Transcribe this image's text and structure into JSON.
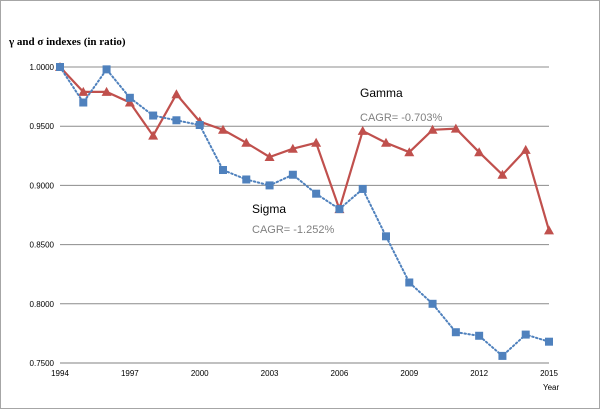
{
  "chart_data": {
    "type": "line",
    "ylabel": "γ and σ indexes (in ratio)",
    "xlabel": "Year",
    "x": [
      1994,
      1995,
      1996,
      1997,
      1998,
      1999,
      2000,
      2001,
      2002,
      2003,
      2004,
      2005,
      2006,
      2007,
      2008,
      2009,
      2010,
      2011,
      2012,
      2013,
      2014,
      2015
    ],
    "xticks": [
      1994,
      1997,
      2000,
      2003,
      2006,
      2009,
      2012,
      2015
    ],
    "yticks": [
      "0.7500",
      "0.8000",
      "0.8500",
      "0.9000",
      "0.9500",
      "1.0000"
    ],
    "ylim": [
      0.75,
      1.0
    ],
    "grid": "horizontal",
    "series": [
      {
        "name": "Gamma",
        "color": "#c0504d",
        "marker": "triangle",
        "style": "solid",
        "values": [
          1.0,
          0.979,
          0.979,
          0.97,
          0.942,
          0.977,
          0.954,
          0.947,
          0.936,
          0.924,
          0.931,
          0.936,
          0.88,
          0.946,
          0.936,
          0.928,
          0.947,
          0.948,
          0.928,
          0.909,
          0.93,
          0.862
        ]
      },
      {
        "name": "Sigma",
        "color": "#4f81bd",
        "marker": "square",
        "style": "dotted",
        "values": [
          1.0,
          0.97,
          0.998,
          0.974,
          0.959,
          0.955,
          0.951,
          0.913,
          0.905,
          0.9,
          0.909,
          0.893,
          0.88,
          0.897,
          0.857,
          0.818,
          0.8,
          0.776,
          0.773,
          0.756,
          0.774,
          0.768
        ]
      }
    ],
    "annotations": {
      "gamma_name": "Gamma",
      "gamma_cagr": "CAGR=  -0.703%",
      "sigma_name": "Sigma",
      "sigma_cagr": "CAGR=  -1.252%"
    }
  }
}
